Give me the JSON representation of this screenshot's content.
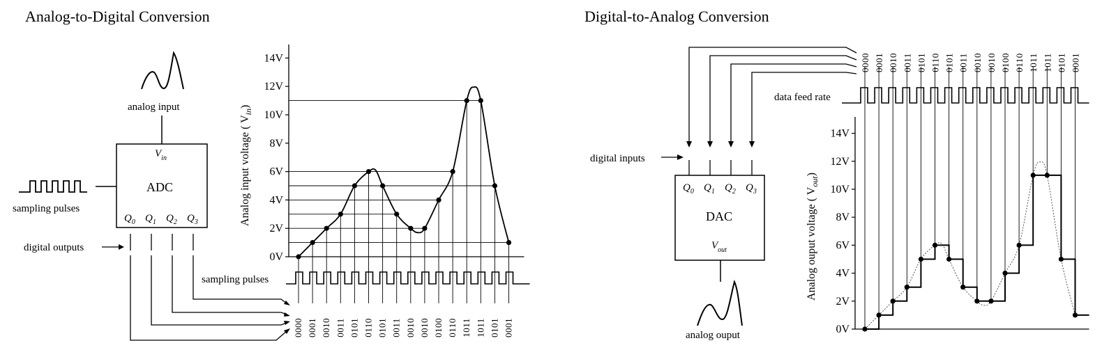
{
  "adc": {
    "title": "Analog-to-Digital Conversion",
    "analog_input_label": "analog input",
    "box_label": "ADC",
    "vin_label": "V",
    "vin_sub": "in",
    "sampling_pulses_label": "sampling pulses",
    "digital_outputs_label": "digital outputs",
    "outputs": [
      "Q",
      "Q",
      "Q",
      "Q"
    ],
    "output_subs": [
      "0",
      "1",
      "2",
      "3"
    ],
    "chart_sampling_label": "sampling pulses",
    "y_axis_label": "Analog input voltage ( V",
    "y_axis_sub": "in",
    "y_axis_close": ")"
  },
  "dac": {
    "title": "Digital-to-Analog Conversion",
    "digital_inputs_label": "digital inputs",
    "box_label": "DAC",
    "vout_label": "V",
    "vout_sub": "out",
    "inputs": [
      "Q",
      "Q",
      "Q",
      "Q"
    ],
    "input_subs": [
      "0",
      "1",
      "2",
      "3"
    ],
    "analog_output_label": "analog ouput",
    "data_feed_label": "data feed rate",
    "y_axis_label": "Analog ouput voltage ( V",
    "y_axis_sub": "out",
    "y_axis_close": ")"
  },
  "chart_data": [
    {
      "type": "line",
      "title": "",
      "ylabel": "Analog input voltage ( Vin )",
      "y_ticks": [
        "0V",
        "2V",
        "4V",
        "6V",
        "8V",
        "10V",
        "12V",
        "14V"
      ],
      "ylim": [
        0,
        14
      ],
      "samples": [
        0,
        1,
        2,
        3,
        5,
        6,
        5,
        3,
        2,
        2,
        4,
        6,
        11,
        11,
        5,
        1
      ],
      "codes": [
        "0000",
        "0001",
        "0010",
        "0011",
        "0101",
        "0110",
        "0101",
        "0011",
        "0010",
        "0010",
        "0100",
        "0110",
        "1011",
        "1011",
        "0101",
        "0001"
      ]
    },
    {
      "type": "line",
      "title": "",
      "ylabel": "Analog ouput voltage ( Vout )",
      "y_ticks": [
        "0V",
        "2V",
        "4V",
        "6V",
        "8V",
        "10V",
        "12V",
        "14V"
      ],
      "ylim": [
        0,
        14
      ],
      "samples": [
        0,
        1,
        2,
        3,
        5,
        6,
        5,
        3,
        2,
        2,
        4,
        6,
        11,
        11,
        5,
        1
      ],
      "codes": [
        "0000",
        "0001",
        "0010",
        "0011",
        "0101",
        "0110",
        "0101",
        "0011",
        "0010",
        "0010",
        "0100",
        "0110",
        "1011",
        "1011",
        "0101",
        "0001"
      ]
    }
  ]
}
